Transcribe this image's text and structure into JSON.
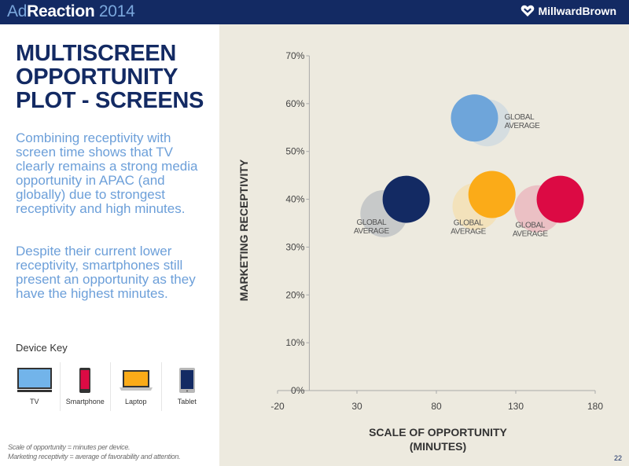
{
  "header": {
    "brand_ad": "Ad",
    "brand_reaction": "Reaction",
    "brand_year": " 2014",
    "logo_text": "MillwardBrown"
  },
  "left": {
    "title_lines": [
      "MULTISCREEN",
      "OPPORTUNITY",
      "PLOT - SCREENS"
    ],
    "paragraph1": "Combining receptivity with screen time shows that TV clearly remains a strong media opportunity in APAC (and globally) due to strongest receptivity and high minutes.",
    "paragraph2": "Despite their current lower receptivity, smartphones still present an opportunity as they have the highest minutes.",
    "device_key_label": "Device Key",
    "devices": [
      {
        "name": "TV",
        "icon": "tv-icon",
        "color": "#72b4ea"
      },
      {
        "name": "Smartphone",
        "icon": "smartphone-icon",
        "color": "#dc0a44"
      },
      {
        "name": "Laptop",
        "icon": "laptop-icon",
        "color": "#fbab18"
      },
      {
        "name": "Tablet",
        "icon": "tablet-icon",
        "color": "#132a63"
      }
    ],
    "footnote_lines": [
      "Scale of opportunity = minutes per device.",
      "Marketing receptivity = average of favorability and attention."
    ]
  },
  "page_number": "22",
  "chart_data": {
    "type": "scatter",
    "title": "",
    "xlabel_lines": [
      "SCALE OF OPPORTUNITY",
      "(MINUTES)"
    ],
    "ylabel": "MARKETING RECEPTIVITY",
    "xlim": [
      -20,
      180
    ],
    "ylim": [
      0,
      70
    ],
    "x_ticks": [
      -20,
      30,
      80,
      130,
      180
    ],
    "y_ticks": [
      0,
      10,
      20,
      30,
      40,
      50,
      60,
      70
    ],
    "y_tick_labels": [
      "0%",
      "10%",
      "20%",
      "30%",
      "40%",
      "50%",
      "60%",
      "70%"
    ],
    "grid": false,
    "annotation_label_lines": [
      "GLOBAL",
      "AVERAGE"
    ],
    "series": [
      {
        "name": "TV",
        "color": "#6ea5da",
        "global_color": "#d5dde0",
        "apac": {
          "x": 104,
          "y": 57
        },
        "global": {
          "x": 112,
          "y": 56
        },
        "label_side": "right"
      },
      {
        "name": "Tablet",
        "color": "#132a63",
        "global_color": "#c7c9c9",
        "apac": {
          "x": 61,
          "y": 40
        },
        "global": {
          "x": 47,
          "y": 37
        },
        "label_side": "left"
      },
      {
        "name": "Laptop",
        "color": "#fbab18",
        "global_color": "#f3e2bb",
        "apac": {
          "x": 115,
          "y": 41
        },
        "global": {
          "x": 105,
          "y": 38.5
        },
        "label_side": "below-left"
      },
      {
        "name": "Smartphone",
        "color": "#dc0a44",
        "global_color": "#ebc0c4",
        "apac": {
          "x": 158,
          "y": 40
        },
        "global": {
          "x": 144,
          "y": 38
        },
        "label_side": "below-left"
      }
    ]
  }
}
